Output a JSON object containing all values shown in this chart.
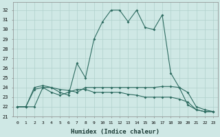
{
  "xlabel": "Humidex (Indice chaleur)",
  "background_color": "#cfe8e5",
  "grid_color": "#b0d0cc",
  "line_color": "#2d6b60",
  "xlim": [
    -0.5,
    23.5
  ],
  "ylim": [
    21,
    32.8
  ],
  "yticks": [
    21,
    22,
    23,
    24,
    25,
    26,
    27,
    28,
    29,
    30,
    31,
    32
  ],
  "xticks": [
    0,
    1,
    2,
    3,
    4,
    5,
    6,
    7,
    8,
    9,
    10,
    11,
    12,
    13,
    14,
    15,
    16,
    17,
    18,
    19,
    20,
    21,
    22,
    23
  ],
  "series": [
    {
      "x": [
        0,
        1,
        2,
        3,
        4,
        5,
        6,
        7,
        8,
        9,
        10,
        11,
        12,
        13,
        14,
        15,
        16,
        17,
        18,
        19,
        20,
        21,
        22,
        23
      ],
      "y": [
        22,
        22,
        22,
        24,
        24,
        23.5,
        23.2,
        26.5,
        25,
        29,
        30.8,
        32,
        32,
        30.8,
        32,
        30.2,
        30,
        31.5,
        25.5,
        24,
        22.2,
        21.7,
        21.5,
        21.5
      ]
    },
    {
      "x": [
        0,
        1,
        2,
        3,
        4,
        5,
        6,
        7,
        8,
        9,
        10,
        11,
        12,
        13,
        14,
        15,
        16,
        17,
        18,
        19,
        20,
        21,
        22,
        23
      ],
      "y": [
        22,
        22,
        24,
        24.2,
        24,
        23.8,
        23.7,
        23.5,
        24,
        24,
        24,
        24,
        24,
        24,
        24,
        24,
        24,
        24.1,
        24.1,
        24,
        23.5,
        22,
        21.7,
        21.5
      ]
    },
    {
      "x": [
        0,
        1,
        2,
        3,
        4,
        5,
        6,
        7,
        8,
        9,
        10,
        11,
        12,
        13,
        14,
        15,
        16,
        17,
        18,
        19,
        20,
        21,
        22,
        23
      ],
      "y": [
        22,
        22,
        23.8,
        24,
        23.5,
        23.2,
        23.5,
        23.8,
        23.8,
        23.5,
        23.5,
        23.5,
        23.5,
        23.3,
        23.2,
        23,
        23,
        23,
        23,
        22.8,
        22.5,
        21.7,
        21.5,
        21.5
      ]
    }
  ]
}
